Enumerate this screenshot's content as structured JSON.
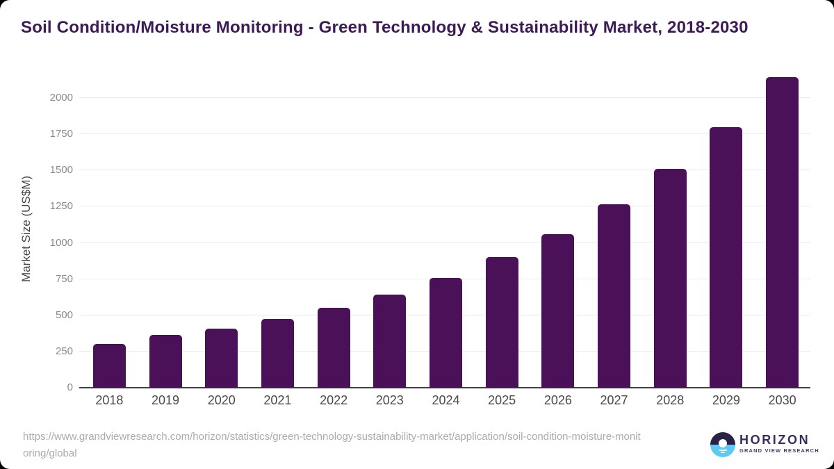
{
  "page": {
    "background": "#000000"
  },
  "header": {
    "title": "Soil Condition/Moisture Monitoring - Green Technology & Sustainability Market, 2018-2030"
  },
  "chart_data": {
    "type": "bar",
    "title": "Soil Condition/Moisture Monitoring - Green Technology & Sustainability Market, 2018-2030",
    "categories": [
      "2018",
      "2019",
      "2020",
      "2021",
      "2022",
      "2023",
      "2024",
      "2025",
      "2026",
      "2027",
      "2028",
      "2029",
      "2030"
    ],
    "values": [
      300,
      365,
      410,
      475,
      550,
      645,
      760,
      900,
      1060,
      1265,
      1510,
      1800,
      2145
    ],
    "xlabel": "",
    "ylabel": "Market Size (US$M)",
    "yticks": [
      0,
      250,
      500,
      750,
      1000,
      1250,
      1500,
      1750,
      2000
    ],
    "ylim": [
      0,
      2197
    ],
    "grid": "horizontal",
    "legend": "none"
  },
  "footer": {
    "source_url": "https://www.grandviewresearch.com/horizon/statistics/green-technology-sustainability-market/application/soil-condition-moisture-monitoring/global",
    "logo": {
      "wordmark": "HORIZON",
      "subtitle": "GRAND VIEW RESEARCH"
    }
  },
  "colors": {
    "bar": "#4a1158",
    "title": "#3d1a55",
    "gridline": "#ebebeb",
    "axis_line": "#424242",
    "y_tick": "#8a8a8a",
    "x_tick": "#4a4a4a",
    "source_text": "#ababab",
    "logo_navy": "#2b2147",
    "logo_blue": "#5fc9f3"
  }
}
